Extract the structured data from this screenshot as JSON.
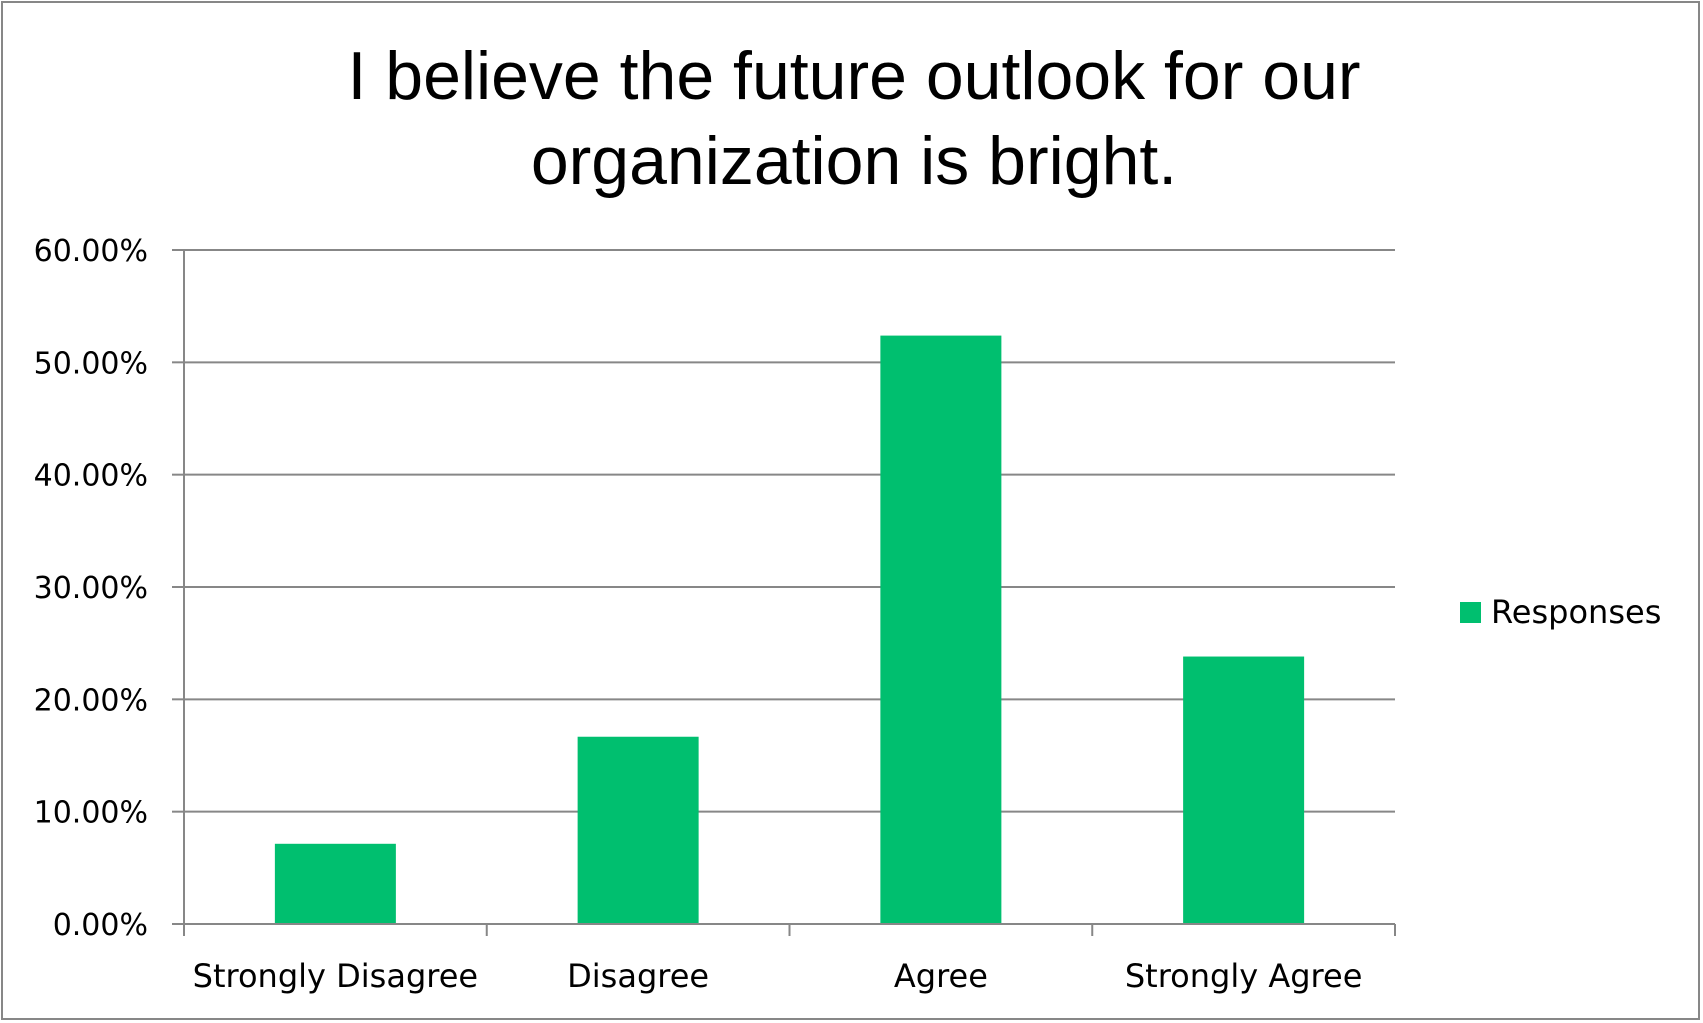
{
  "chart_data": {
    "type": "bar",
    "title": "I believe the future outlook for our organization is bright.",
    "title_lines": [
      "I believe the future outlook for our",
      "organization is bright."
    ],
    "categories": [
      "Strongly Disagree",
      "Disagree",
      "Agree",
      "Strongly Agree"
    ],
    "series": [
      {
        "name": "Responses",
        "values": [
          7.14,
          16.67,
          52.38,
          23.81
        ],
        "color": "#00BF6F"
      }
    ],
    "ylim": [
      0,
      60
    ],
    "yticks": [
      0,
      10,
      20,
      30,
      40,
      50,
      60
    ],
    "ytick_labels": [
      "0.00%",
      "10.00%",
      "20.00%",
      "30.00%",
      "40.00%",
      "50.00%",
      "60.00%"
    ],
    "xlabel": "",
    "ylabel": "",
    "grid": true,
    "legend_position": "right",
    "gridline_color": "#878787"
  }
}
